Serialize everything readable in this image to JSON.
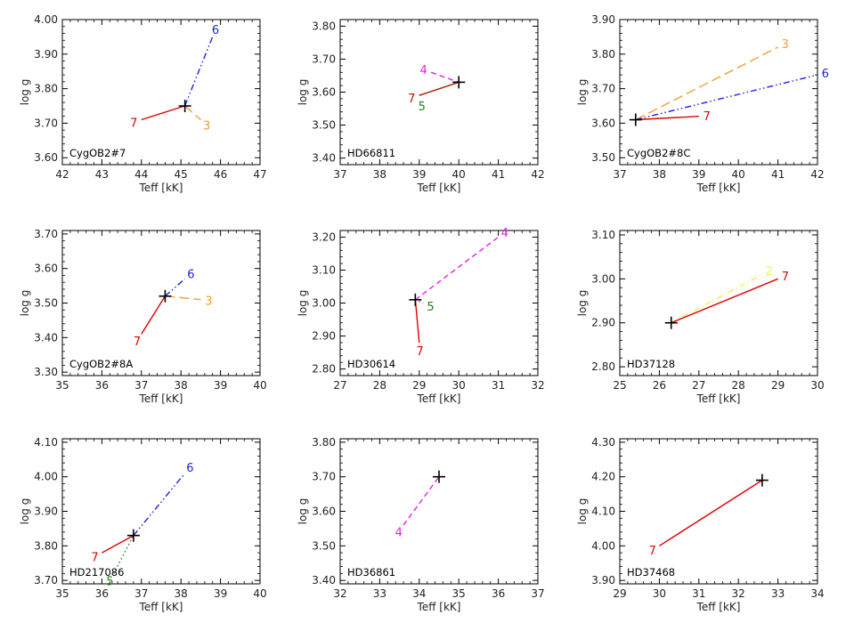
{
  "colors": {
    "line_7": "#e00000",
    "line_6": "#2020e0",
    "line_3": "#f0a030",
    "line_5": "#208020",
    "line_4": "#e020e0",
    "line_2": "#f0f050",
    "axis": "#000000",
    "marker": "#000000"
  },
  "chart_data": [
    {
      "type": "line",
      "title": "CygOB2#7",
      "xlabel": "Teff [kK]",
      "ylabel": "log g",
      "xlim": [
        42,
        47
      ],
      "ylim": [
        3.58,
        4.0
      ],
      "xticks": [
        "42",
        "43",
        "44",
        "45",
        "46",
        "47"
      ],
      "yticks": [
        "3.60",
        "3.70",
        "3.80",
        "3.90",
        "4.00"
      ],
      "marker": {
        "x": 45.1,
        "y": 3.75
      },
      "series": [
        {
          "name": "7",
          "color": "#e00000",
          "dash": "solid",
          "x": [
            44.0,
            45.1
          ],
          "y": [
            3.71,
            3.75
          ]
        },
        {
          "name": "6",
          "color": "#2020e0",
          "dash": "dashdotdot",
          "x": [
            45.1,
            45.8
          ],
          "y": [
            3.75,
            3.95
          ]
        },
        {
          "name": "3",
          "color": "#f0a030",
          "dash": "longdash",
          "x": [
            45.1,
            45.5
          ],
          "y": [
            3.75,
            3.71
          ]
        }
      ]
    },
    {
      "type": "line",
      "title": "HD66811",
      "xlabel": "Teff [kK]",
      "ylabel": "log g",
      "xlim": [
        37,
        42
      ],
      "ylim": [
        3.38,
        3.82
      ],
      "xticks": [
        "37",
        "38",
        "39",
        "40",
        "41",
        "42"
      ],
      "yticks": [
        "3.40",
        "3.50",
        "3.60",
        "3.70",
        "3.80"
      ],
      "marker": {
        "x": 40.0,
        "y": 3.63
      },
      "series": [
        {
          "name": "4",
          "color": "#e020e0",
          "dash": "dashed",
          "x": [
            39.3,
            40.0
          ],
          "y": [
            3.66,
            3.63
          ]
        },
        {
          "name": "7",
          "color": "#e00000",
          "dash": "solid",
          "x": [
            39.0,
            40.0
          ],
          "y": [
            3.59,
            3.63
          ]
        },
        {
          "name": "5",
          "color": "#208020",
          "dash": "dotted",
          "x": [
            39.0,
            40.0
          ],
          "y": [
            3.59,
            3.63
          ]
        }
      ]
    },
    {
      "type": "line",
      "title": "CygOB2#8C",
      "xlabel": "Teff [kK]",
      "ylabel": "log g",
      "xlim": [
        37,
        42
      ],
      "ylim": [
        3.48,
        3.9
      ],
      "xticks": [
        "37",
        "38",
        "39",
        "40",
        "41",
        "42"
      ],
      "yticks": [
        "3.50",
        "3.60",
        "3.70",
        "3.80",
        "3.90"
      ],
      "marker": {
        "x": 37.4,
        "y": 3.61
      },
      "series": [
        {
          "name": "3",
          "color": "#f0a030",
          "dash": "longdash",
          "x": [
            37.4,
            41.0
          ],
          "y": [
            3.61,
            3.82
          ]
        },
        {
          "name": "6",
          "color": "#2020e0",
          "dash": "dashdotdot",
          "x": [
            37.4,
            42.0
          ],
          "y": [
            3.61,
            3.74
          ]
        },
        {
          "name": "7",
          "color": "#e00000",
          "dash": "solid",
          "x": [
            37.4,
            39.0
          ],
          "y": [
            3.61,
            3.62
          ]
        }
      ]
    },
    {
      "type": "line",
      "title": "CygOB2#8A",
      "xlabel": "Teff [kK]",
      "ylabel": "log g",
      "xlim": [
        35,
        40
      ],
      "ylim": [
        3.29,
        3.71
      ],
      "xticks": [
        "35",
        "36",
        "37",
        "38",
        "39",
        "40"
      ],
      "yticks": [
        "3.30",
        "3.40",
        "3.50",
        "3.60",
        "3.70"
      ],
      "marker": {
        "x": 37.6,
        "y": 3.52
      },
      "series": [
        {
          "name": "6",
          "color": "#2020e0",
          "dash": "dashdotdot",
          "x": [
            37.6,
            38.1
          ],
          "y": [
            3.52,
            3.57
          ]
        },
        {
          "name": "3",
          "color": "#f0a030",
          "dash": "longdash",
          "x": [
            37.6,
            38.5
          ],
          "y": [
            3.52,
            3.51
          ]
        },
        {
          "name": "7",
          "color": "#e00000",
          "dash": "solid",
          "x": [
            37.0,
            37.6
          ],
          "y": [
            3.41,
            3.52
          ]
        }
      ]
    },
    {
      "type": "line",
      "title": "HD30614",
      "xlabel": "Teff [kK]",
      "ylabel": "log g",
      "xlim": [
        27,
        32
      ],
      "ylim": [
        2.78,
        3.22
      ],
      "xticks": [
        "27",
        "28",
        "29",
        "30",
        "31",
        "32"
      ],
      "yticks": [
        "2.80",
        "2.90",
        "3.00",
        "3.10",
        "3.20"
      ],
      "marker": {
        "x": 28.9,
        "y": 3.01
      },
      "series": [
        {
          "name": "4",
          "color": "#e020e0",
          "dash": "dashed",
          "x": [
            28.9,
            31.0
          ],
          "y": [
            3.01,
            3.2
          ]
        },
        {
          "name": "5",
          "color": "#208020",
          "dash": "dotted",
          "x": [
            28.9,
            29.1
          ],
          "y": [
            3.01,
            3.0
          ]
        },
        {
          "name": "7",
          "color": "#e00000",
          "dash": "solid",
          "x": [
            28.9,
            29.0
          ],
          "y": [
            3.01,
            2.88
          ]
        }
      ]
    },
    {
      "type": "line",
      "title": "HD37128",
      "xlabel": "Teff [kK]",
      "ylabel": "log g",
      "xlim": [
        25,
        30
      ],
      "ylim": [
        2.78,
        3.11
      ],
      "xticks": [
        "25",
        "26",
        "27",
        "28",
        "29",
        "30"
      ],
      "yticks": [
        "2.80",
        "2.90",
        "3.00",
        "3.10"
      ],
      "marker": {
        "x": 26.3,
        "y": 2.9
      },
      "series": [
        {
          "name": "2",
          "color": "#f0f050",
          "dash": "dashdot",
          "x": [
            26.3,
            28.6
          ],
          "y": [
            2.9,
            3.01
          ]
        },
        {
          "name": "7",
          "color": "#e00000",
          "dash": "solid",
          "x": [
            26.3,
            29.0
          ],
          "y": [
            2.9,
            3.0
          ]
        }
      ]
    },
    {
      "type": "line",
      "title": "HD217086",
      "xlabel": "Teff [kK]",
      "ylabel": "log g",
      "xlim": [
        35,
        40
      ],
      "ylim": [
        3.69,
        4.11
      ],
      "xticks": [
        "35",
        "36",
        "37",
        "38",
        "39",
        "40"
      ],
      "yticks": [
        "3.70",
        "3.80",
        "3.90",
        "4.00",
        "4.10"
      ],
      "marker": {
        "x": 36.8,
        "y": 3.83
      },
      "series": [
        {
          "name": "6",
          "color": "#2020e0",
          "dash": "dashdotdot",
          "x": [
            36.8,
            38.1
          ],
          "y": [
            3.83,
            4.01
          ]
        },
        {
          "name": "7",
          "color": "#e00000",
          "dash": "solid",
          "x": [
            36.0,
            36.8
          ],
          "y": [
            3.78,
            3.83
          ]
        },
        {
          "name": "5",
          "color": "#208020",
          "dash": "dotted",
          "x": [
            36.3,
            36.8
          ],
          "y": [
            3.72,
            3.83
          ]
        }
      ]
    },
    {
      "type": "line",
      "title": "HD36861",
      "xlabel": "Teff [kK]",
      "ylabel": "log g",
      "xlim": [
        32,
        37
      ],
      "ylim": [
        3.39,
        3.81
      ],
      "xticks": [
        "32",
        "33",
        "34",
        "35",
        "36",
        "37"
      ],
      "yticks": [
        "3.40",
        "3.50",
        "3.60",
        "3.70",
        "3.80"
      ],
      "marker": {
        "x": 34.5,
        "y": 3.7
      },
      "series": [
        {
          "name": "4",
          "color": "#e020e0",
          "dash": "dashed",
          "x": [
            33.6,
            34.5
          ],
          "y": [
            3.56,
            3.7
          ]
        }
      ]
    },
    {
      "type": "line",
      "title": "HD37468",
      "xlabel": "Teff [kK]",
      "ylabel": "log g",
      "xlim": [
        29,
        34
      ],
      "ylim": [
        3.89,
        4.31
      ],
      "xticks": [
        "29",
        "30",
        "31",
        "32",
        "33",
        "34"
      ],
      "yticks": [
        "3.90",
        "4.00",
        "4.10",
        "4.20",
        "4.30"
      ],
      "marker": {
        "x": 32.6,
        "y": 4.19
      },
      "series": [
        {
          "name": "7",
          "color": "#e00000",
          "dash": "solid",
          "x": [
            30.0,
            32.6
          ],
          "y": [
            4.0,
            4.19
          ]
        }
      ]
    }
  ]
}
